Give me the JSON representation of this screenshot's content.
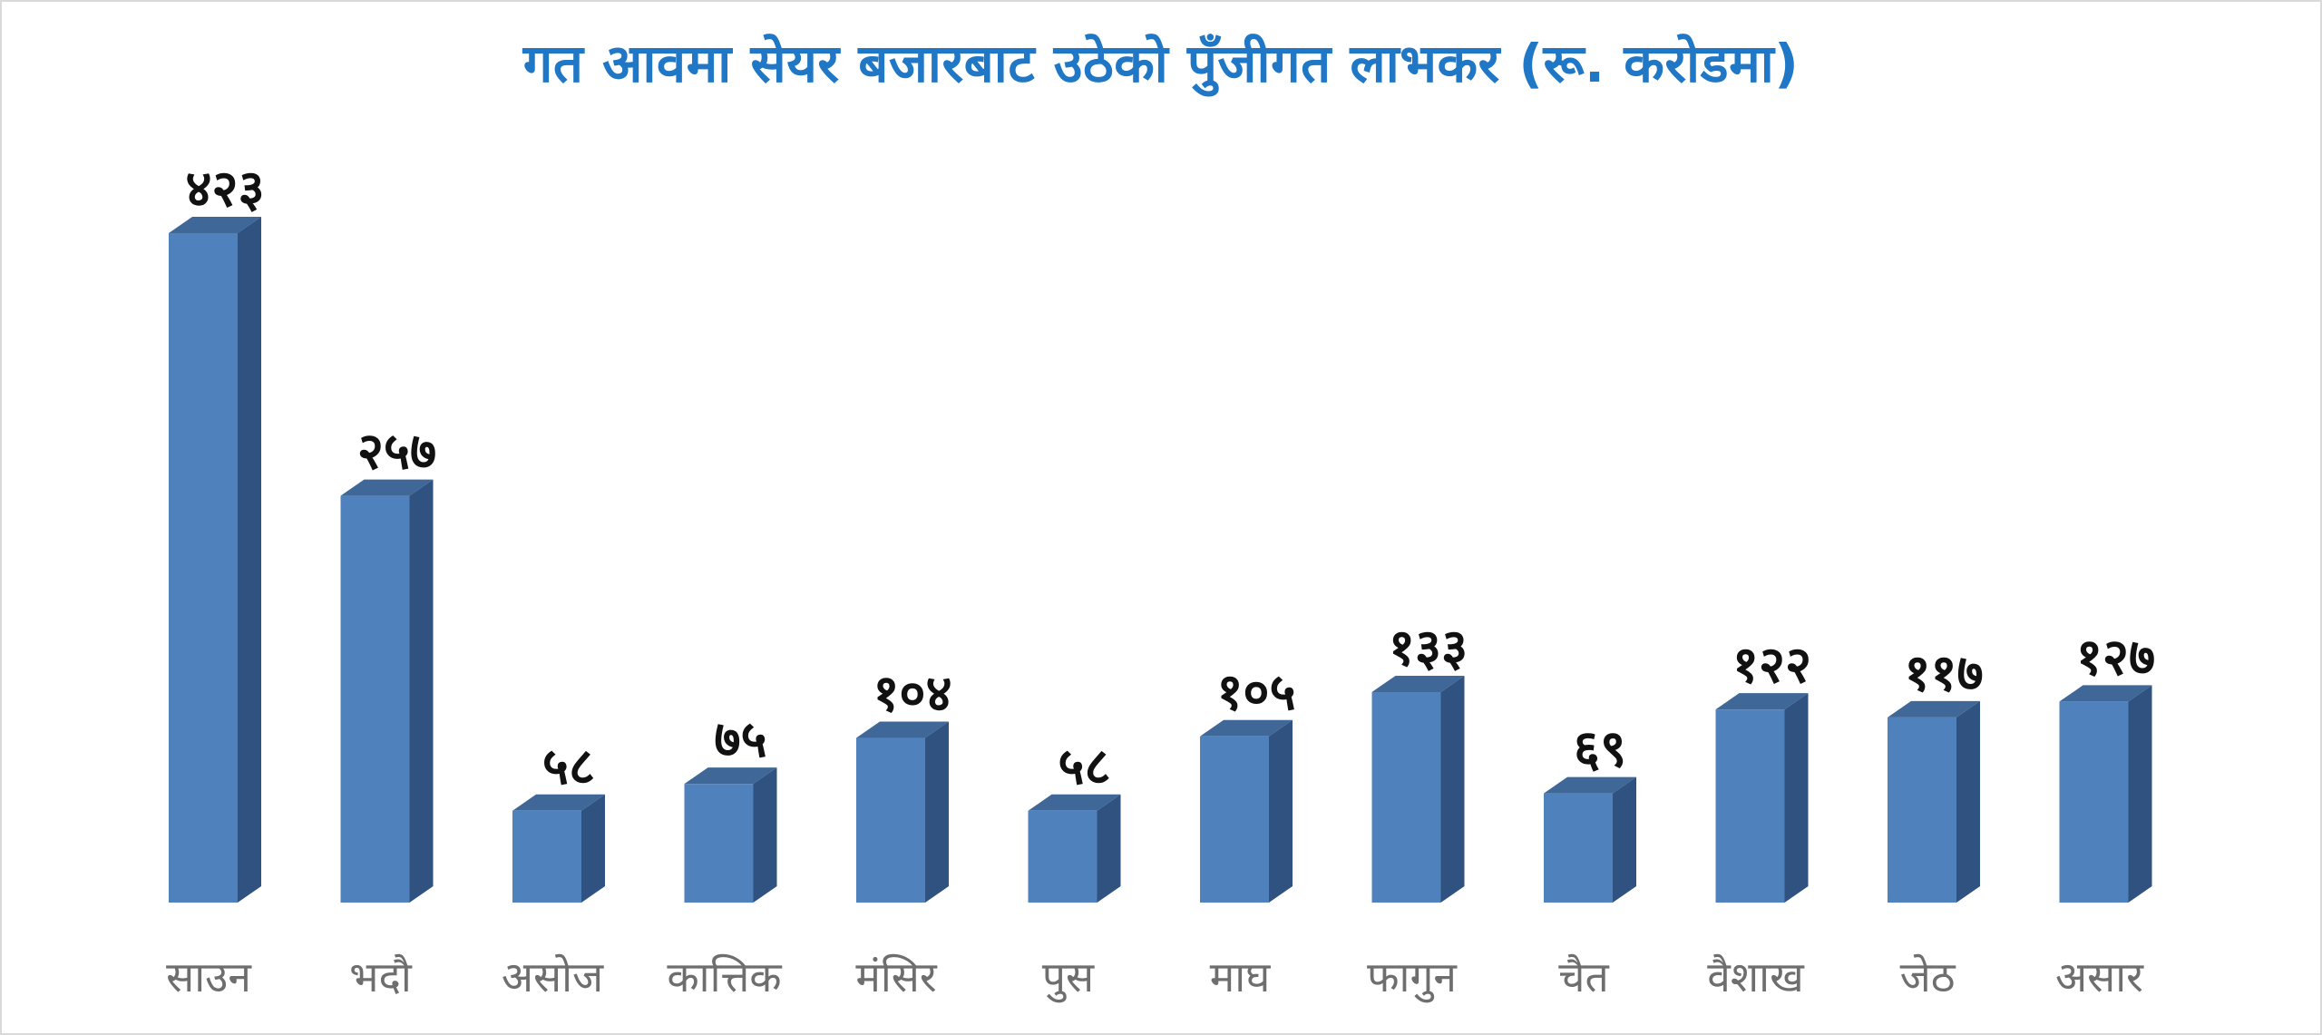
{
  "chart_data": {
    "type": "bar",
    "title": "गत आवमा सेयर बजारबाट उठेको पुँजीगत लाभकर (रू. करोडमा)",
    "xlabel": "",
    "ylabel": "",
    "categories": [
      "साउन",
      "भदौ",
      "असोज",
      "कात्तिक",
      "मंसिर",
      "पुस",
      "माघ",
      "फागुन",
      "चैत",
      "वैशाख",
      "जेठ",
      "असार"
    ],
    "values": [
      423,
      257,
      58,
      75,
      104,
      58,
      105,
      133,
      69,
      122,
      117,
      127
    ],
    "data_labels": [
      "४२३",
      "२५७",
      "५८",
      "७५",
      "१०४",
      "५८",
      "१०५",
      "१३३",
      "६९",
      "१२२",
      "११७",
      "१२७"
    ],
    "ylim": [
      0,
      423
    ],
    "grid": false,
    "legend": "none",
    "style": "3d-column",
    "colors": {
      "bar_front": "#4f81bd",
      "bar_side": "#2f5280",
      "bar_top": "#3f6798",
      "title": "#1f77c6",
      "data_label": "#111111",
      "category_label": "#6e6e6e"
    }
  }
}
